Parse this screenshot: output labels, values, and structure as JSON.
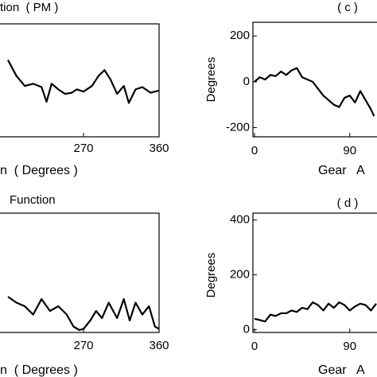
{
  "chart_data": [
    {
      "type": "line",
      "title": "tion  ( PM )",
      "xlabel": "n  ( Degrees )",
      "x": [
        180,
        190,
        200,
        210,
        220,
        226,
        232,
        240,
        248,
        256,
        262,
        270,
        280,
        288,
        295,
        302,
        310,
        318,
        324,
        332,
        340,
        350,
        360
      ],
      "values": [
        68,
        54,
        45,
        47,
        44,
        31,
        47,
        42,
        38,
        39,
        42,
        40,
        45,
        54,
        59,
        51,
        38,
        45,
        30,
        42,
        44,
        39,
        41
      ],
      "color": "#000000",
      "xlim": [
        180,
        360
      ],
      "ylim": [
        0,
        100
      ],
      "xticks": [
        270,
        360
      ]
    },
    {
      "type": "line",
      "title": "Function",
      "xlabel": "n  ( Degrees )",
      "x": [
        180,
        190,
        200,
        210,
        220,
        230,
        240,
        250,
        258,
        265,
        270,
        278,
        285,
        292,
        300,
        310,
        318,
        325,
        332,
        340,
        348,
        355,
        360
      ],
      "values": [
        30,
        25,
        22,
        15,
        28,
        18,
        22,
        15,
        5,
        2,
        3,
        10,
        18,
        12,
        25,
        12,
        28,
        10,
        25,
        15,
        22,
        5,
        3
      ],
      "color": "#000000",
      "xlim": [
        180,
        360
      ],
      "ylim": [
        0,
        100
      ],
      "xticks": [
        270,
        360
      ]
    },
    {
      "type": "line",
      "annotation": "( c )",
      "xlabel": "Gear   A",
      "ylabel": "Degrees",
      "x": [
        0,
        5,
        10,
        15,
        20,
        25,
        30,
        35,
        40,
        45,
        50,
        55,
        60,
        65,
        70,
        75,
        80,
        85,
        90,
        95,
        100,
        105,
        110,
        113
      ],
      "values": [
        0,
        20,
        10,
        30,
        25,
        45,
        30,
        50,
        60,
        20,
        10,
        0,
        -30,
        -60,
        -80,
        -100,
        -110,
        -70,
        -60,
        -90,
        -40,
        -80,
        -120,
        -150
      ],
      "color": "#000000",
      "xlim": [
        0,
        115
      ],
      "ylim": [
        -240,
        260
      ],
      "xticks": [
        0,
        90
      ],
      "yticks": [
        -200,
        0,
        200
      ]
    },
    {
      "type": "line",
      "annotation": "( d )",
      "xlabel": "Gear   A",
      "ylabel": "Degrees",
      "x": [
        0,
        5,
        10,
        15,
        20,
        25,
        30,
        35,
        40,
        45,
        50,
        55,
        60,
        65,
        70,
        75,
        80,
        85,
        90,
        95,
        100,
        105,
        110,
        115
      ],
      "values": [
        40,
        35,
        30,
        55,
        50,
        60,
        60,
        70,
        65,
        80,
        75,
        100,
        90,
        70,
        95,
        80,
        100,
        90,
        70,
        85,
        95,
        90,
        70,
        95
      ],
      "color": "#000000",
      "xlim": [
        0,
        115
      ],
      "ylim": [
        -10,
        425
      ],
      "xticks": [
        0,
        90
      ],
      "yticks": [
        0,
        200,
        400
      ]
    }
  ]
}
